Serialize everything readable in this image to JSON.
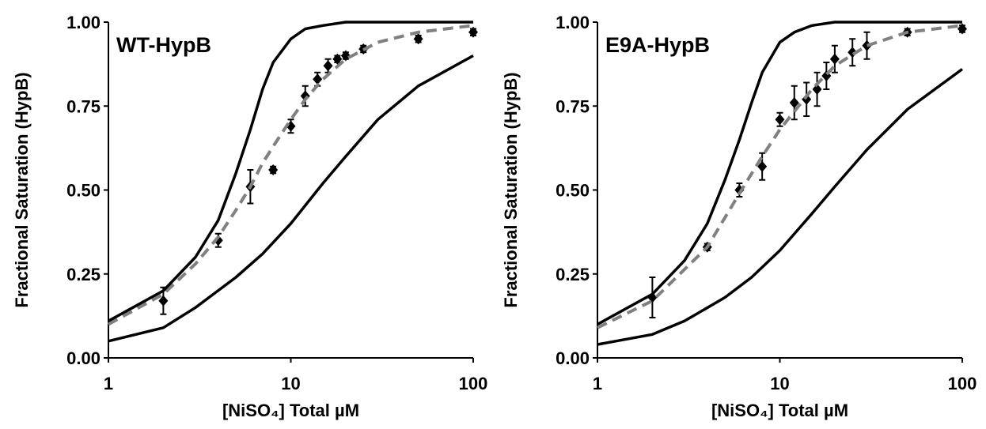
{
  "chart_data": [
    {
      "type": "line",
      "annotation": "WT-HypB",
      "xlabel": "[NiSO₄] Total µM",
      "ylabel": "Fractional Saturation (HypB)",
      "xscale": "log",
      "xlim": [
        1,
        100
      ],
      "xticks": [
        1,
        10,
        100
      ],
      "ylim": [
        0,
        1
      ],
      "yticks": [
        {
          "value": 0,
          "label": "0.00"
        },
        {
          "value": 0.25,
          "label": "0.25"
        },
        {
          "value": 0.5,
          "label": "0.50"
        },
        {
          "value": 0.75,
          "label": "0.75"
        },
        {
          "value": 1,
          "label": "1.00"
        }
      ],
      "series": [
        {
          "kind": "points",
          "color": "#000000",
          "x": [
            2,
            4,
            6,
            8,
            10,
            12,
            14,
            16,
            18,
            20,
            25,
            50,
            100
          ],
          "values": [
            0.17,
            0.35,
            0.51,
            0.56,
            0.69,
            0.78,
            0.83,
            0.87,
            0.89,
            0.9,
            0.92,
            0.95,
            0.97
          ],
          "errors": [
            0.04,
            0.02,
            0.05,
            0.01,
            0.02,
            0.03,
            0.02,
            0.02,
            0.01,
            0.01,
            0.01,
            0.01,
            0.01
          ]
        },
        {
          "kind": "line",
          "dash": true,
          "color": "#808080",
          "x": [
            1,
            2,
            3,
            4,
            5,
            6,
            7,
            8,
            10,
            12,
            15,
            20,
            30,
            50,
            100
          ],
          "values": [
            0.1,
            0.19,
            0.28,
            0.36,
            0.44,
            0.51,
            0.58,
            0.63,
            0.71,
            0.77,
            0.83,
            0.89,
            0.94,
            0.97,
            0.99
          ]
        },
        {
          "kind": "line",
          "dash": false,
          "color": "#000000",
          "x": [
            1,
            2,
            3,
            4,
            5,
            6,
            7,
            8,
            10,
            12,
            15,
            20,
            50,
            100
          ],
          "values": [
            0.11,
            0.2,
            0.3,
            0.41,
            0.55,
            0.68,
            0.8,
            0.88,
            0.95,
            0.98,
            0.99,
            1.0,
            1.0,
            1.0
          ]
        },
        {
          "kind": "line",
          "dash": false,
          "color": "#000000",
          "x": [
            1,
            2,
            3,
            5,
            7,
            10,
            15,
            20,
            30,
            50,
            100
          ],
          "values": [
            0.05,
            0.09,
            0.15,
            0.24,
            0.31,
            0.4,
            0.52,
            0.6,
            0.71,
            0.81,
            0.9
          ]
        }
      ]
    },
    {
      "type": "line",
      "annotation": "E9A-HypB",
      "xlabel": "[NiSO₄] Total µM",
      "ylabel": "Fractional Saturation (HypB)",
      "xscale": "log",
      "xlim": [
        1,
        100
      ],
      "xticks": [
        1,
        10,
        100
      ],
      "ylim": [
        0,
        1
      ],
      "yticks": [
        {
          "value": 0,
          "label": "0.00"
        },
        {
          "value": 0.25,
          "label": "0.25"
        },
        {
          "value": 0.5,
          "label": "0.50"
        },
        {
          "value": 0.75,
          "label": "0.75"
        },
        {
          "value": 1,
          "label": "1.00"
        }
      ],
      "series": [
        {
          "kind": "points",
          "color": "#000000",
          "x": [
            2,
            4,
            6,
            8,
            10,
            12,
            14,
            16,
            18,
            20,
            25,
            30,
            50,
            100
          ],
          "values": [
            0.18,
            0.33,
            0.5,
            0.57,
            0.71,
            0.76,
            0.77,
            0.8,
            0.84,
            0.89,
            0.91,
            0.93,
            0.97,
            0.98
          ],
          "errors": [
            0.06,
            0.01,
            0.02,
            0.04,
            0.02,
            0.05,
            0.05,
            0.05,
            0.04,
            0.04,
            0.04,
            0.04,
            0.01,
            0.01
          ]
        },
        {
          "kind": "line",
          "dash": true,
          "color": "#808080",
          "x": [
            1,
            2,
            4,
            6,
            8,
            10,
            15,
            20,
            30,
            50,
            100
          ],
          "values": [
            0.09,
            0.17,
            0.33,
            0.49,
            0.6,
            0.68,
            0.8,
            0.87,
            0.93,
            0.97,
            0.99
          ]
        },
        {
          "kind": "line",
          "dash": false,
          "color": "#000000",
          "x": [
            1,
            2,
            3,
            4,
            5,
            6,
            7,
            8,
            10,
            12,
            15,
            20,
            100
          ],
          "values": [
            0.1,
            0.19,
            0.29,
            0.4,
            0.53,
            0.65,
            0.76,
            0.85,
            0.94,
            0.97,
            0.99,
            1.0,
            1.0
          ]
        },
        {
          "kind": "line",
          "dash": false,
          "color": "#000000",
          "x": [
            1,
            2,
            3,
            5,
            7,
            10,
            15,
            20,
            30,
            50,
            100
          ],
          "values": [
            0.04,
            0.07,
            0.11,
            0.18,
            0.24,
            0.32,
            0.43,
            0.51,
            0.62,
            0.74,
            0.86
          ]
        }
      ]
    }
  ]
}
